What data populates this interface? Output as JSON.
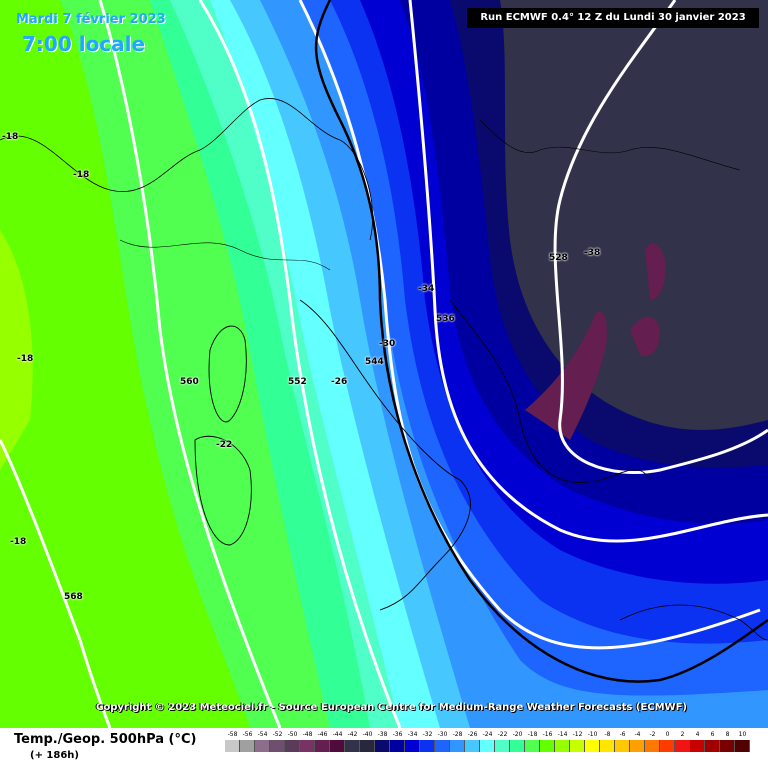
{
  "header": {
    "date": "Mardi 7 février 2023",
    "time": "7:00 locale",
    "run": "Run ECMWF 0.4° 12 Z du Lundi 30 janvier 2023"
  },
  "copyright": "Copyright © 2023 Meteociel.fr - Source European Centre for Medium-Range Weather Forecasts (ECMWF)",
  "footer": {
    "product": "Temp./Geop. 500hPa (°C)",
    "lead": "(+ 186h)"
  },
  "labels": {
    "temp": [
      "-18",
      "-18",
      "-18",
      "-18",
      "-22",
      "-26",
      "-30",
      "-34",
      "-38"
    ],
    "geo": [
      "560",
      "552",
      "544",
      "536",
      "528",
      "568"
    ]
  },
  "scale": {
    "ticks": [
      "-58",
      "-56",
      "-54",
      "-52",
      "-50",
      "-48",
      "-46",
      "-44",
      "-42",
      "-40",
      "-38",
      "-36",
      "-34",
      "-32",
      "-30",
      "-28",
      "-26",
      "-24",
      "-22",
      "-20",
      "-18",
      "-16",
      "-14",
      "-12",
      "-10",
      "-8",
      "-6",
      "-4",
      "-2",
      "0",
      "2",
      "4",
      "6",
      "8",
      "10"
    ],
    "colors": [
      "#c8c8c8",
      "#a0a0a0",
      "#8c6e8c",
      "#6e506e",
      "#5a3c5a",
      "#783264",
      "#641e50",
      "#500a3c",
      "#32324b",
      "#28283c",
      "#0a0a6e",
      "#0000a0",
      "#0000d2",
      "#0a32f0",
      "#1e64ff",
      "#3296ff",
      "#46c8ff",
      "#64ffff",
      "#50ffc8",
      "#32ff96",
      "#50ff50",
      "#64ff00",
      "#96ff00",
      "#c8ff00",
      "#ffff00",
      "#ffe600",
      "#ffc800",
      "#ffa000",
      "#ff7800",
      "#ff3c00",
      "#f01414",
      "#c80000",
      "#a00000",
      "#780000",
      "#500000"
    ]
  }
}
